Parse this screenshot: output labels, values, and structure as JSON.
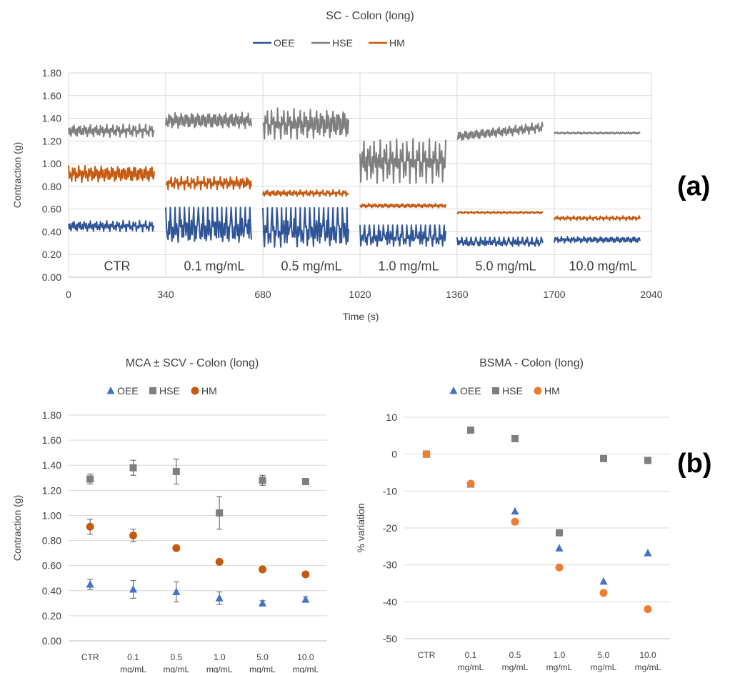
{
  "panels": {
    "a": "(a)",
    "b": "(b)"
  },
  "colors": {
    "OEE": "#2F5597",
    "HSE": "#7F7F7F",
    "HM": "#C55A11",
    "HM_b3": "#ED7D31",
    "OEE_b3": "#4472C4"
  },
  "chart_data": [
    {
      "type": "line",
      "title": "SC - Colon (long)",
      "xlabel": "Time (s)",
      "ylabel": "Contraction (g)",
      "xlim": [
        0,
        2040
      ],
      "ylim": [
        0,
        1.8
      ],
      "xticks": [
        "0",
        "340",
        "680",
        "1020",
        "1360",
        "1700",
        "2040"
      ],
      "yticks": [
        "0.00",
        "0.20",
        "0.40",
        "0.60",
        "0.80",
        "1.00",
        "1.20",
        "1.40",
        "1.60",
        "1.80"
      ],
      "legend": [
        "OEE",
        "HSE",
        "HM"
      ],
      "legend_position": "top",
      "grid": true,
      "segment_labels": [
        "CTR",
        "0.1 mg/mL",
        "0.5 mg/mL",
        "1.0 mg/mL",
        "5.0 mg/mL",
        "10.0 mg/mL"
      ],
      "segments": [
        {
          "x": [
            0,
            300
          ],
          "HSE": {
            "mean": 1.29,
            "amp": 0.06
          },
          "HM": {
            "mean": 0.91,
            "amp": 0.08
          },
          "OEE": {
            "mean": 0.45,
            "amp": 0.05
          }
        },
        {
          "x": [
            340,
            640
          ],
          "HSE": {
            "mean": 1.38,
            "amp": 0.08
          },
          "HM": {
            "mean": 0.83,
            "amp": 0.06
          },
          "OEE": {
            "mean": 0.41,
            "amp": 0.12
          }
        },
        {
          "x": [
            680,
            980
          ],
          "HSE": {
            "mean": 1.35,
            "amp": 0.14
          },
          "HM": {
            "mean": 0.74,
            "amp": 0.03
          },
          "OEE": {
            "mean": 0.39,
            "amp": 0.13
          }
        },
        {
          "x": [
            1020,
            1320
          ],
          "HSE": {
            "mean": 1.02,
            "amp": 0.2
          },
          "HM": {
            "mean": 0.63,
            "amp": 0.02
          },
          "OEE": {
            "mean": 0.34,
            "amp": 0.07
          }
        },
        {
          "x": [
            1360,
            1660
          ],
          "HSE": {
            "mean": 1.28,
            "amp": 0.05
          },
          "HM": {
            "mean": 0.57,
            "amp": 0.01
          },
          "OEE": {
            "mean": 0.3,
            "amp": 0.03
          }
        },
        {
          "x": [
            1700,
            2000
          ],
          "HSE": {
            "mean": 1.27,
            "amp": 0.01
          },
          "HM": {
            "mean": 0.52,
            "amp": 0.02
          },
          "OEE": {
            "mean": 0.33,
            "amp": 0.03
          }
        }
      ]
    },
    {
      "type": "scatter",
      "title": "MCA ± SCV - Colon (long)",
      "ylabel": "Contraction (g)",
      "ylim": [
        0,
        1.8
      ],
      "yticks": [
        "0.00",
        "0.20",
        "0.40",
        "0.60",
        "0.80",
        "1.00",
        "1.20",
        "1.40",
        "1.60",
        "1.80"
      ],
      "categories": [
        [
          "CTR"
        ],
        [
          "0.1",
          "mg/mL"
        ],
        [
          "0.5",
          "mg/mL"
        ],
        [
          "1.0",
          "mg/mL"
        ],
        [
          "5.0",
          "mg/mL"
        ],
        [
          "10.0",
          "mg/mL"
        ]
      ],
      "legend": [
        "OEE",
        "HSE",
        "HM"
      ],
      "legend_position": "top",
      "grid": true,
      "series": [
        {
          "name": "OEE",
          "marker": "triangle",
          "values": [
            0.45,
            0.41,
            0.39,
            0.34,
            0.3,
            0.33
          ],
          "err": [
            0.04,
            0.07,
            0.08,
            0.05,
            0.02,
            0.02
          ]
        },
        {
          "name": "HSE",
          "marker": "square",
          "values": [
            1.29,
            1.38,
            1.35,
            1.02,
            1.28,
            1.27
          ],
          "err": [
            0.04,
            0.06,
            0.1,
            0.13,
            0.04,
            0.0
          ]
        },
        {
          "name": "HM",
          "marker": "circle",
          "values": [
            0.91,
            0.84,
            0.74,
            0.63,
            0.57,
            0.53
          ],
          "err": [
            0.06,
            0.05,
            0.02,
            0.01,
            0.0,
            0.0
          ]
        }
      ]
    },
    {
      "type": "scatter",
      "title": "BSMA - Colon (long)",
      "ylabel": "% variation",
      "ylim": [
        -50,
        10
      ],
      "yticks": [
        "10",
        "0",
        "-10",
        "-20",
        "-30",
        "-40",
        "-50"
      ],
      "categories": [
        [
          "CTR"
        ],
        [
          "0.1",
          "mg/mL"
        ],
        [
          "0.5",
          "mg/mL"
        ],
        [
          "1.0",
          "mg/mL"
        ],
        [
          "5.0",
          "mg/mL"
        ],
        [
          "10.0",
          "mg/mL"
        ]
      ],
      "legend": [
        "OEE",
        "HSE",
        "HM"
      ],
      "legend_position": "top",
      "grid": true,
      "series": [
        {
          "name": "OEE",
          "marker": "triangle",
          "values": [
            0,
            -8.2,
            -15.5,
            -25.5,
            -34.5,
            -26.8
          ]
        },
        {
          "name": "HSE",
          "marker": "square",
          "values": [
            0,
            6.5,
            4.2,
            -21.3,
            -1.2,
            -1.7
          ]
        },
        {
          "name": "HM",
          "marker": "circle",
          "values": [
            0,
            -8,
            -18.3,
            -30.7,
            -37.6,
            -42
          ]
        }
      ]
    }
  ]
}
